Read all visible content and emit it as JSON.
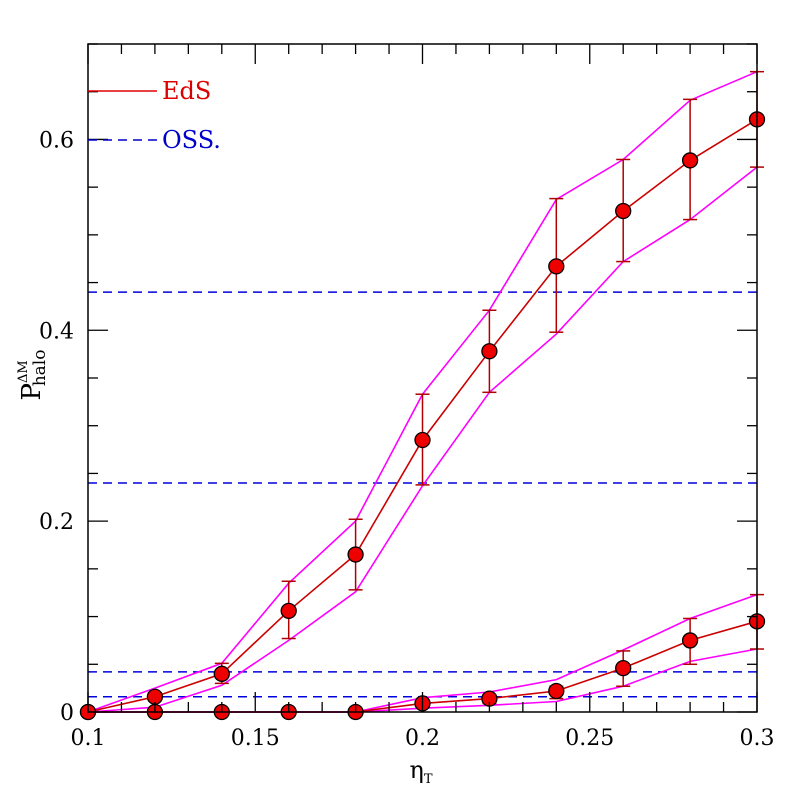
{
  "chart_data": {
    "type": "line",
    "xlim": [
      0.1,
      0.3
    ],
    "ylim": [
      0,
      0.7
    ],
    "x_ticks": [
      0.1,
      0.15,
      0.2,
      0.25,
      0.3
    ],
    "x_tick_labels": [
      "0.1",
      "0.15",
      "0.2",
      "0.25",
      "0.3"
    ],
    "y_ticks": [
      0,
      0.2,
      0.4,
      0.6
    ],
    "y_tick_labels": [
      "0",
      "0.2",
      "0.4",
      "0.6"
    ],
    "xlabel": {
      "main": "η",
      "sub": "T"
    },
    "ylabel": {
      "main": "P",
      "sup": "ΔM",
      "sub": "halo"
    },
    "grid": false,
    "legend_position": "top-left",
    "legend": [
      {
        "label": "EdS",
        "style": "solid",
        "color": "#dd0000"
      },
      {
        "label": "OSS.",
        "style": "dashed",
        "color": "#0000cc"
      }
    ],
    "x": [
      0.1,
      0.12,
      0.14,
      0.16,
      0.18,
      0.2,
      0.22,
      0.24,
      0.26,
      0.28,
      0.3
    ],
    "series": [
      {
        "values": [
          0.0,
          0.016,
          0.04,
          0.106,
          0.165,
          0.285,
          0.378,
          0.467,
          0.525,
          0.578,
          0.621
        ],
        "err_low": [
          0.0,
          0.012,
          0.03,
          0.077,
          0.128,
          0.238,
          0.335,
          0.398,
          0.472,
          0.516,
          0.571
        ],
        "err_high": [
          0.0,
          0.02,
          0.051,
          0.137,
          0.202,
          0.333,
          0.421,
          0.538,
          0.579,
          0.642,
          0.671
        ],
        "band_low": [
          0.0,
          0.005,
          0.028,
          0.075,
          0.126,
          0.237,
          0.335,
          0.396,
          0.472,
          0.516,
          0.571
        ],
        "band_high": [
          0.0,
          0.025,
          0.051,
          0.135,
          0.2,
          0.333,
          0.421,
          0.537,
          0.579,
          0.641,
          0.671
        ]
      },
      {
        "values": [
          0.0,
          0.0,
          0.0,
          0.0,
          0.0,
          0.009,
          0.014,
          0.022,
          0.046,
          0.075,
          0.095
        ],
        "err_low": [
          0.0,
          0.0,
          0.0,
          0.0,
          0.0,
          0.005,
          0.009,
          0.014,
          0.027,
          0.05,
          0.066
        ],
        "err_high": [
          0.0,
          0.0,
          0.0,
          0.0,
          0.0,
          0.012,
          0.018,
          0.027,
          0.064,
          0.098,
          0.123
        ],
        "band_low": [
          0.0,
          0.0,
          0.0,
          0.0,
          0.0,
          0.004,
          0.007,
          0.011,
          0.027,
          0.053,
          0.066
        ],
        "band_high": [
          0.0,
          0.0,
          0.0,
          0.0,
          0.0,
          0.015,
          0.021,
          0.034,
          0.065,
          0.098,
          0.123
        ]
      }
    ],
    "hlines": [
      0.44,
      0.24,
      0.042,
      0.016
    ],
    "colors": {
      "mean_line": "#cc0000",
      "band_line": "#ff00ff",
      "error_bar": "#b00000",
      "marker_fill": "#ee0000",
      "hline": "#0000dd"
    }
  }
}
